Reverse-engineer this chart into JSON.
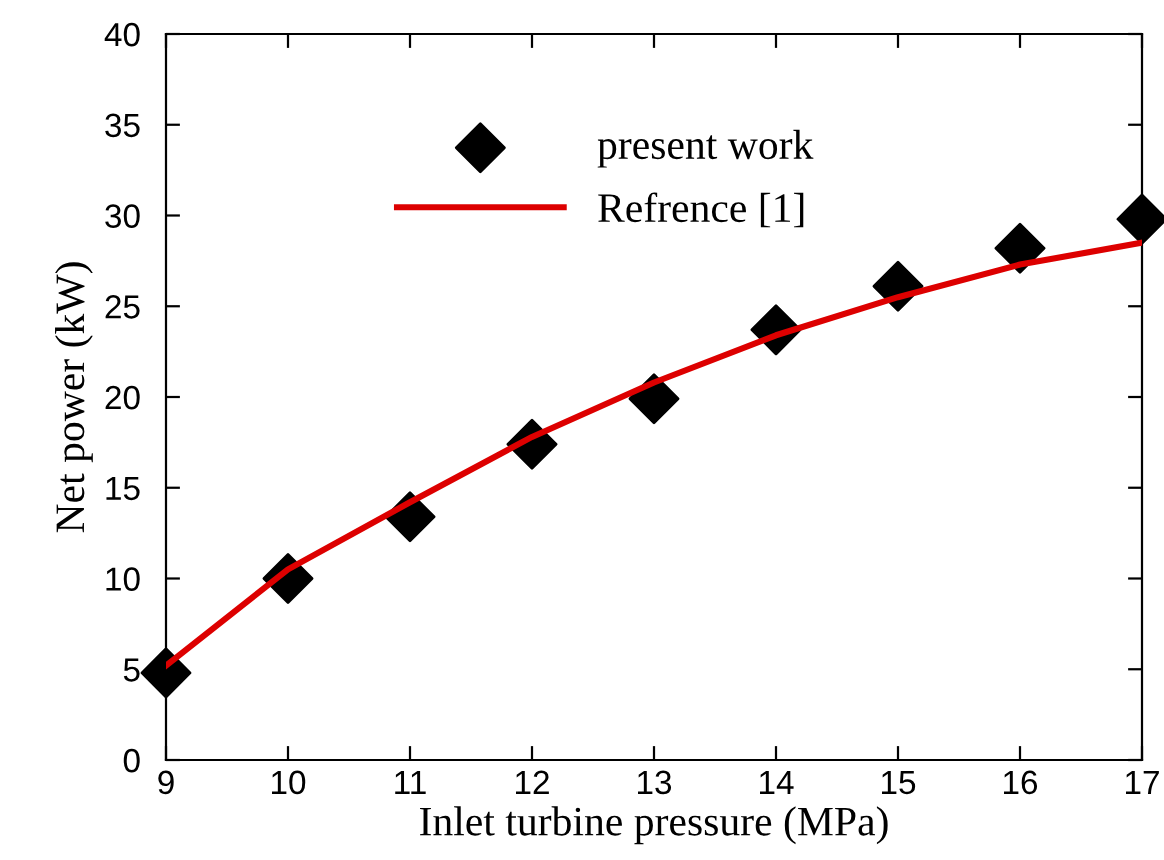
{
  "chart_data": {
    "type": "scatter",
    "xlabel": "Inlet turbine pressure (MPa)",
    "ylabel": "Net power (kW)",
    "x": [
      9,
      10,
      11,
      12,
      13,
      14,
      15,
      16,
      17
    ],
    "series": [
      {
        "name": "present work",
        "color": "#000000",
        "marker": "diamond",
        "values": [
          4.8,
          10.0,
          13.4,
          17.4,
          19.9,
          23.7,
          26.1,
          28.2,
          29.8
        ]
      },
      {
        "name": "Refrence [1]",
        "type": "line",
        "color": "#dd0000",
        "marker": "none",
        "line_style": "solid",
        "values": [
          5.2,
          10.5,
          14.2,
          17.8,
          20.8,
          23.4,
          25.5,
          27.3,
          28.5
        ]
      }
    ],
    "xlim": [
      9,
      17
    ],
    "ylim": [
      0,
      40
    ],
    "xticks": [
      9,
      10,
      11,
      12,
      13,
      14,
      15,
      16,
      17
    ],
    "yticks": [
      0,
      5,
      10,
      15,
      20,
      25,
      30,
      35,
      40
    ],
    "grid": false,
    "legend": "top"
  }
}
